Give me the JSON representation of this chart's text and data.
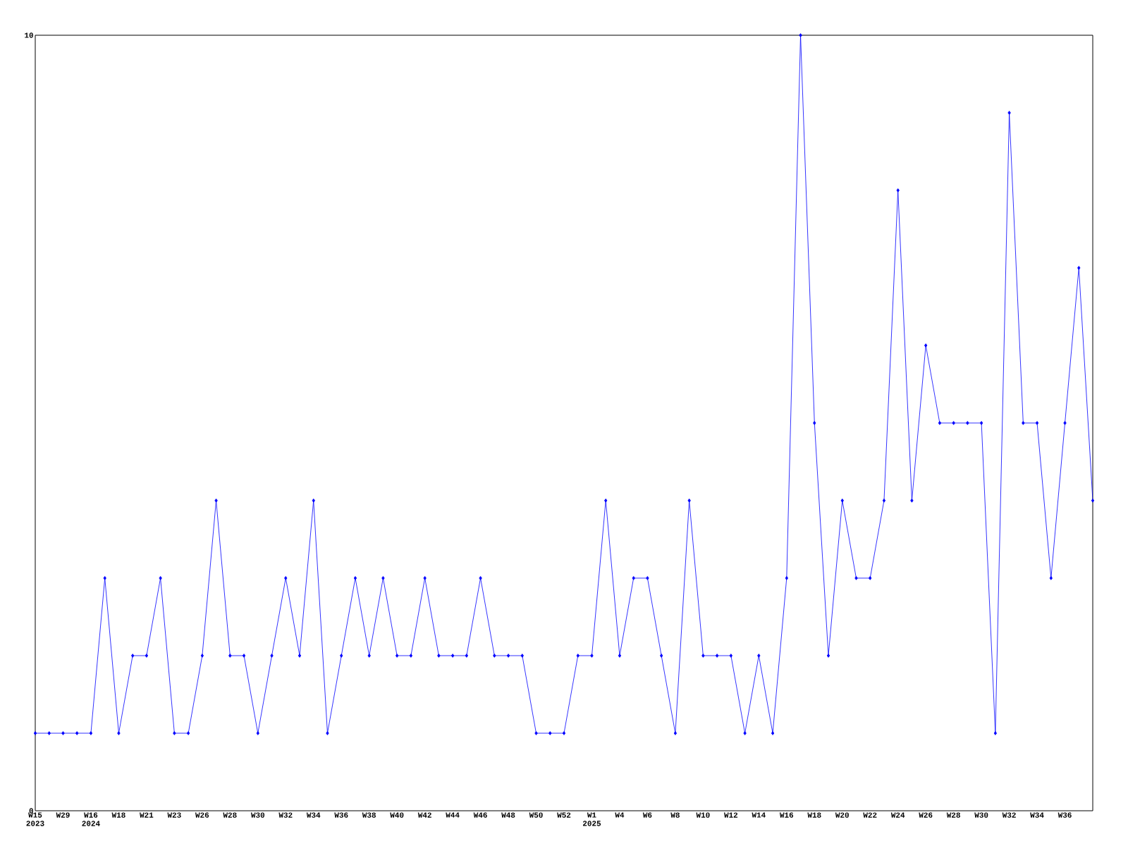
{
  "chart_data": {
    "type": "line",
    "color": "#0000ff",
    "marker": "diamond",
    "line_style": "solid",
    "categories": [
      "W15 2023",
      null,
      "W29",
      null,
      "W16 2024",
      null,
      "W18",
      null,
      "W21",
      null,
      "W23",
      null,
      "W26",
      null,
      "W28",
      null,
      "W30",
      null,
      "W32",
      null,
      "W34",
      null,
      "W36",
      null,
      "W38",
      null,
      "W40",
      null,
      "W42",
      null,
      "W44",
      null,
      "W46",
      null,
      "W48",
      null,
      "W50",
      null,
      "W52",
      null,
      "W1 2025",
      null,
      "W4",
      null,
      "W6",
      null,
      "W8",
      null,
      "W10",
      null,
      "W12",
      null,
      "W14",
      null,
      "W16",
      null,
      "W18",
      null,
      "W20",
      null,
      "W22",
      null,
      "W24",
      null,
      "W26",
      null,
      "W28",
      null,
      "W30",
      null,
      "W32",
      null,
      "W34",
      null,
      "W36",
      null,
      null
    ],
    "values": [
      1,
      1,
      1,
      1,
      1,
      3,
      1,
      2,
      2,
      3,
      1,
      1,
      2,
      4,
      2,
      2,
      1,
      2,
      3,
      2,
      4,
      1,
      2,
      3,
      2,
      3,
      2,
      2,
      3,
      2,
      2,
      2,
      3,
      2,
      2,
      2,
      1,
      1,
      1,
      2,
      2,
      4,
      2,
      3,
      3,
      2,
      1,
      4,
      2,
      2,
      2,
      1,
      2,
      1,
      3,
      10,
      5,
      2,
      4,
      3,
      3,
      4,
      8,
      4,
      6,
      5,
      5,
      5,
      5,
      1,
      9,
      5,
      5,
      3,
      5,
      7,
      4
    ],
    "ylim": [
      0,
      10
    ],
    "yticks": [
      0,
      10
    ]
  }
}
